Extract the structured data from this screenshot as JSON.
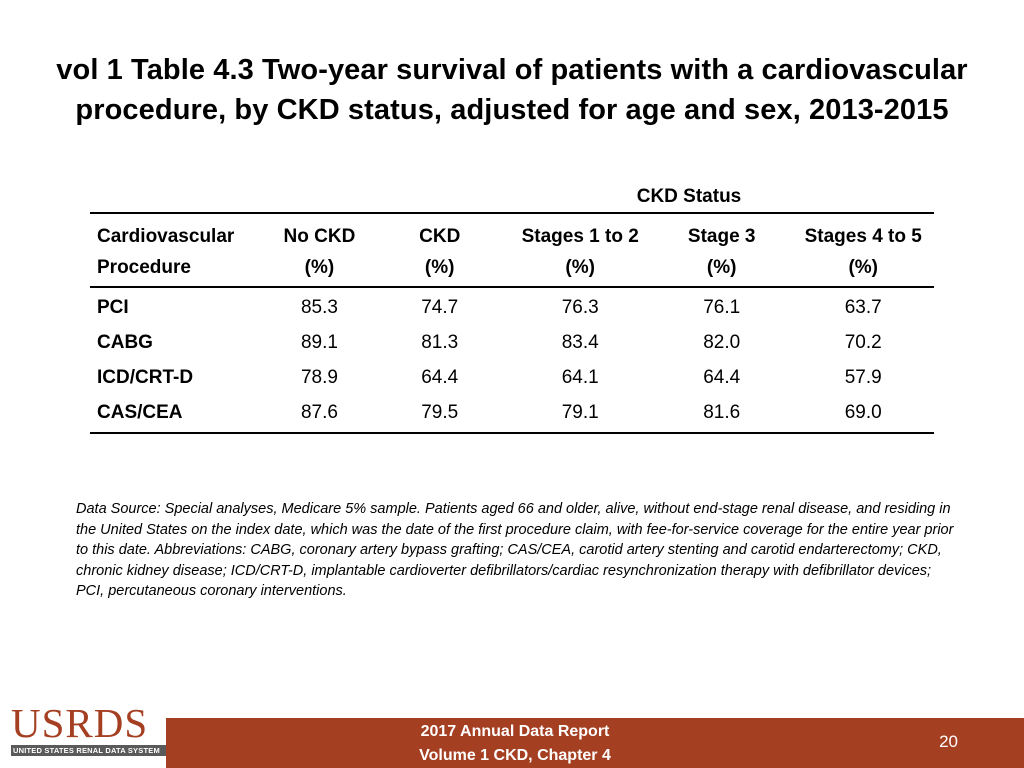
{
  "title": {
    "line1": "vol 1 Table 4.3 Two-year survival of patients with a cardiovascular",
    "line2": "procedure, by CKD status, adjusted for age and sex, 2013-2015"
  },
  "table": {
    "group_header": "CKD Status",
    "columns": [
      {
        "line1": "Cardiovascular",
        "line2": "Procedure"
      },
      {
        "line1": "No CKD",
        "line2": "(%)"
      },
      {
        "line1": "CKD",
        "line2": "(%)"
      },
      {
        "line1": "Stages 1 to 2",
        "line2": "(%)"
      },
      {
        "line1": "Stage 3",
        "line2": "(%)"
      },
      {
        "line1": "Stages 4 to 5",
        "line2": "(%)"
      }
    ],
    "rows": [
      {
        "procedure": "PCI",
        "values": [
          "85.3",
          "74.7",
          "76.3",
          "76.1",
          "63.7"
        ]
      },
      {
        "procedure": "CABG",
        "values": [
          "89.1",
          "81.3",
          "83.4",
          "82.0",
          "70.2"
        ]
      },
      {
        "procedure": "ICD/CRT-D",
        "values": [
          "78.9",
          "64.4",
          "64.1",
          "64.4",
          "57.9"
        ]
      },
      {
        "procedure": "CAS/CEA",
        "values": [
          "87.6",
          "79.5",
          "79.1",
          "81.6",
          "69.0"
        ]
      }
    ]
  },
  "source_note": "Data Source: Special analyses, Medicare 5% sample. Patients aged 66 and older, alive, without end-stage renal disease, and residing in the United States on the index date, which was the date of the first procedure claim, with fee-for-service coverage for the entire year prior to this date. Abbreviations: CABG, coronary artery bypass grafting; CAS/CEA, carotid artery stenting and carotid endarterectomy; CKD, chronic kidney disease; ICD/CRT-D, implantable cardioverter defibrillators/cardiac resynchronization therapy with defibrillator devices; PCI, percutaneous coronary interventions.",
  "logo": {
    "text": "USRDS",
    "subtitle": "UNITED STATES RENAL DATA SYSTEM"
  },
  "footer": {
    "line1": "2017 Annual Data Report",
    "line2": "Volume 1 CKD, Chapter 4",
    "page": "20"
  },
  "colors": {
    "brand": "#a53f22",
    "text": "#000000",
    "background": "#ffffff"
  }
}
